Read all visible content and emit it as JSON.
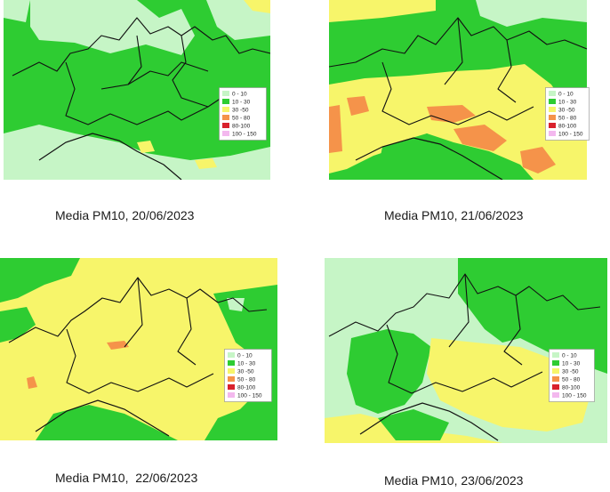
{
  "legend": [
    {
      "label": "0 - 10",
      "color": "#c6f5c6"
    },
    {
      "label": "10 - 30",
      "color": "#2ecc32"
    },
    {
      "label": "30 -50",
      "color": "#f7f56a"
    },
    {
      "label": "50 - 80",
      "color": "#f5934a"
    },
    {
      "label": "80-100",
      "color": "#d9212c"
    },
    {
      "label": "100 - 150",
      "color": "#f3b8ee"
    }
  ],
  "panels": [
    {
      "caption": "Media PM10, 20/06/2023",
      "level_map": "mostly 10-30 with 0-10 in the north and south"
    },
    {
      "caption": "Media PM10, 21/06/2023",
      "level_map": "30-50 in the Po valley with 50-80 hotspots"
    },
    {
      "caption": "Media PM10,  22/06/2023",
      "level_map": "mostly 30-50 with small 50-80 spots"
    },
    {
      "caption": "Media PM10, 23/06/2023",
      "level_map": "mixed 0-10, 10-30 and 30-50"
    }
  ]
}
